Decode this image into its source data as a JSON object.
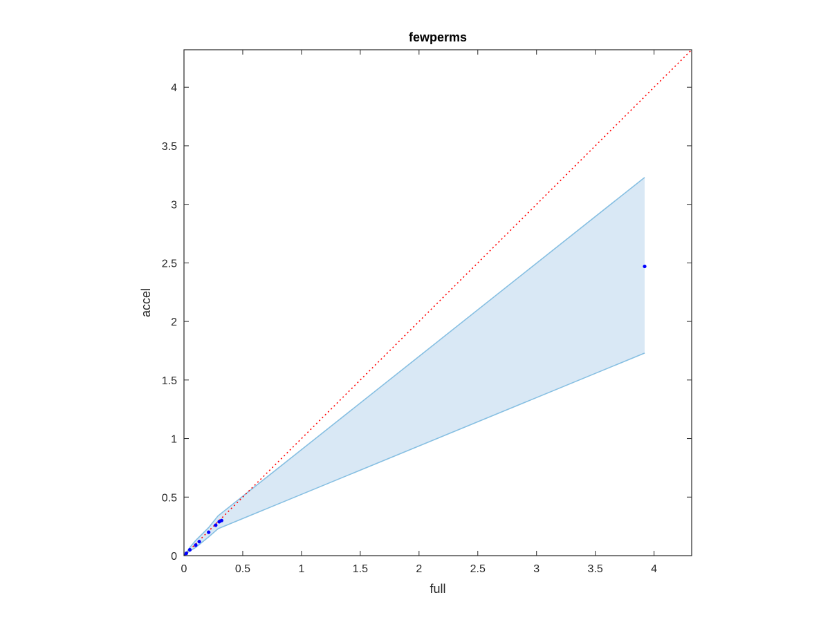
{
  "chart_data": {
    "type": "scatter",
    "title": "fewperms",
    "xlabel": "full",
    "ylabel": "accel",
    "xlim": [
      0,
      4.32
    ],
    "ylim": [
      0,
      4.32
    ],
    "xticks": [
      "0",
      "0.5",
      "1",
      "1.5",
      "2",
      "2.5",
      "3",
      "3.5",
      "4"
    ],
    "yticks": [
      "0",
      "0.5",
      "1",
      "1.5",
      "2",
      "2.5",
      "3",
      "3.5",
      "4"
    ],
    "grid": false,
    "points": {
      "x": [
        0.0,
        0.02,
        0.05,
        0.1,
        0.13,
        0.21,
        0.27,
        0.3,
        0.32,
        3.92
      ],
      "y": [
        0.0,
        0.02,
        0.05,
        0.09,
        0.12,
        0.2,
        0.26,
        0.29,
        0.3,
        2.47
      ]
    },
    "band": {
      "x": [
        0.0,
        0.05,
        0.1,
        0.21,
        0.29,
        3.92
      ],
      "upper": [
        0.0,
        0.07,
        0.13,
        0.24,
        0.34,
        3.23
      ],
      "lower": [
        0.0,
        0.04,
        0.07,
        0.16,
        0.23,
        1.73
      ]
    },
    "reference_line": {
      "from": [
        0,
        0
      ],
      "to": [
        4.32,
        4.32
      ],
      "style": "dotted"
    },
    "colors": {
      "points": "#0000ff",
      "band_fill": "#d9e8f5",
      "band_edge": "#86bfe2",
      "reference": "#ff0000",
      "axes": "#262626"
    }
  }
}
